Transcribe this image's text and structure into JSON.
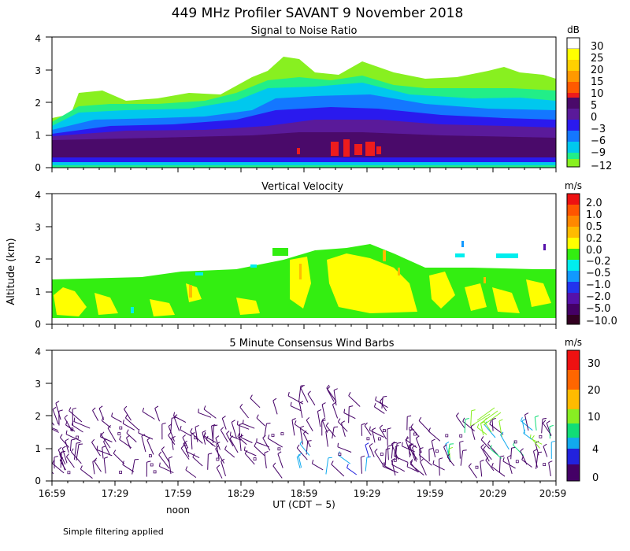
{
  "title": "449 MHz Profiler SAVANT  9 November 2018",
  "ylabel": "Altitude (km)",
  "footnote": "Simple filtering applied",
  "chart_data": [
    {
      "type": "heatmap",
      "title": "Signal to Noise Ratio",
      "unit": "dB",
      "ylim": [
        0,
        4
      ],
      "yticks": [
        "0",
        "1",
        "2",
        "3",
        "4"
      ],
      "colorbar": {
        "labels": [
          "30",
          "25",
          "20",
          "15",
          "10",
          "5",
          "0",
          "−3",
          "−6",
          "−9",
          "−12"
        ],
        "colors": [
          "#ffffff",
          "#ffff00",
          "#ffd000",
          "#ff9900",
          "#ff5a00",
          "#ee1c1c",
          "#4a0a6a",
          "#5a1a9a",
          "#2a1aee",
          "#1477ff",
          "#00c8ee",
          "#22ee88",
          "#88f020"
        ]
      }
    },
    {
      "type": "heatmap",
      "title": "Vertical Velocity",
      "unit": "m/s",
      "ylim": [
        0,
        4
      ],
      "yticks": [
        "0",
        "1",
        "2",
        "3",
        "4"
      ],
      "colorbar": {
        "labels": [
          "2.0",
          "1.0",
          "0.5",
          "0.2",
          "0.0",
          "−0.2",
          "−0.5",
          "−1.0",
          "−2.0",
          "−5.0",
          "−10.0"
        ],
        "colors": [
          "#ee1111",
          "#ff5500",
          "#ff8800",
          "#ffbb00",
          "#ffff00",
          "#33ee11",
          "#00eeee",
          "#1199ff",
          "#2233ee",
          "#5511aa",
          "#440066",
          "#330022"
        ]
      }
    },
    {
      "type": "scatter",
      "title": "5 Minute Consensus Wind Barbs",
      "unit": "m/s",
      "ylim": [
        0,
        4
      ],
      "yticks": [
        "0",
        "1",
        "2",
        "3",
        "4"
      ],
      "colorbar": {
        "labels": [
          "30",
          "20",
          "10",
          "4",
          "0"
        ],
        "colors": [
          "#ee1111",
          "#ff6600",
          "#ffbb00",
          "#88ee22",
          "#11dd77",
          "#11aaee",
          "#2222dd",
          "#440066"
        ]
      }
    }
  ],
  "xaxis": {
    "ticks": [
      "16:59",
      "17:29",
      "17:59",
      "18:29",
      "18:59",
      "19:29",
      "19:59",
      "20:29",
      "20:59"
    ],
    "label": "UT  (CDT − 5)",
    "noon_label": "noon"
  }
}
